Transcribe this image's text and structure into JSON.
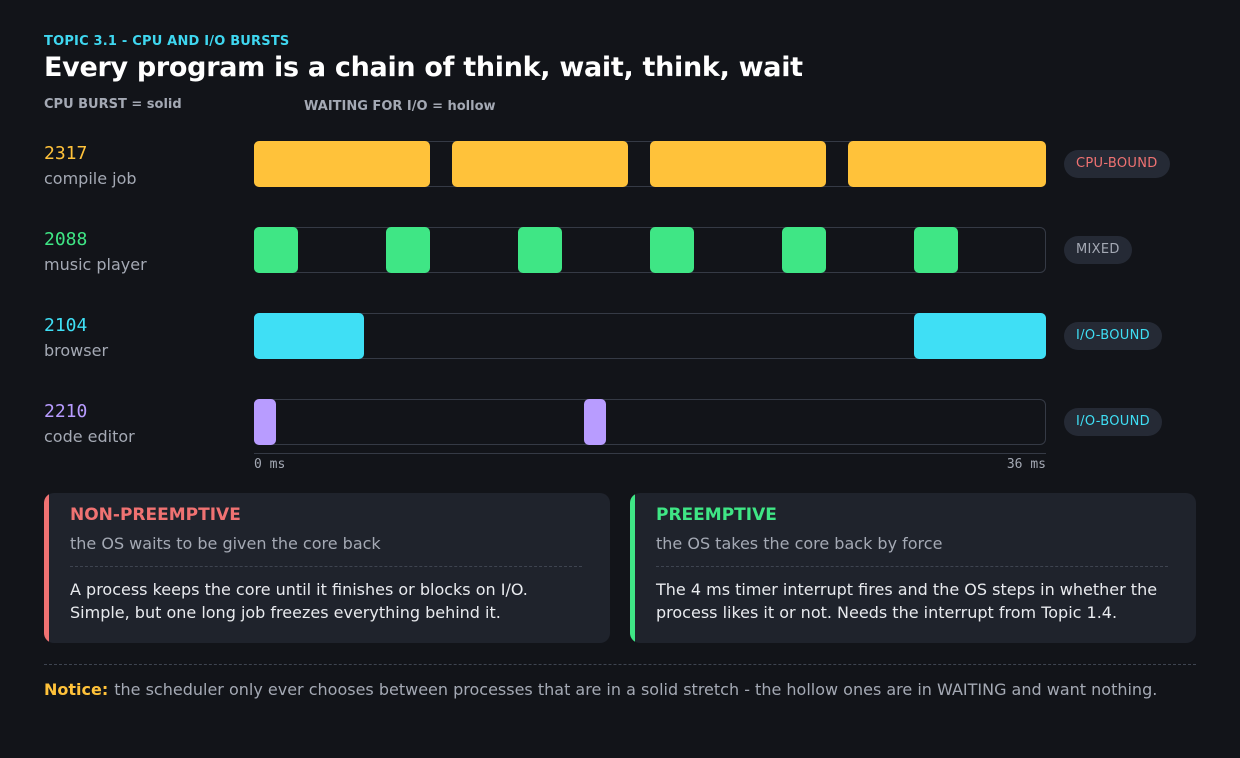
{
  "header": {
    "topic": "TOPIC 3.1  -  CPU AND I/O BURSTS",
    "title": "Every program is a chain of think, wait, think, wait",
    "legend_solid": "CPU BURST  =  solid",
    "legend_hollow": "WAITING FOR I/O  =  hollow"
  },
  "colors": {
    "cpu": "#ffc23a",
    "mixed": "#3fe685",
    "io": "#3fdff5",
    "editor": "#b89cff",
    "red": "#f07272"
  },
  "processes": [
    {
      "pid": "2317",
      "name": "compile job",
      "color": "#ffc23a",
      "badge": "CPU-BOUND",
      "badge_color": "#f07272",
      "bursts": [
        [
          0,
          8
        ],
        [
          9,
          17
        ],
        [
          18,
          26
        ],
        [
          27,
          36
        ]
      ]
    },
    {
      "pid": "2088",
      "name": "music player",
      "color": "#3fe685",
      "badge": "MIXED",
      "badge_color": "#a4a9b4",
      "bursts": [
        [
          0,
          2
        ],
        [
          6,
          8
        ],
        [
          12,
          14
        ],
        [
          18,
          20
        ],
        [
          24,
          26
        ],
        [
          30,
          32
        ]
      ]
    },
    {
      "pid": "2104",
      "name": "browser",
      "color": "#3fdff5",
      "badge": "I/O-BOUND",
      "badge_color": "#3fdff5",
      "bursts": [
        [
          0,
          5
        ],
        [
          30,
          36
        ]
      ]
    },
    {
      "pid": "2210",
      "name": "code editor",
      "color": "#b89cff",
      "badge": "I/O-BOUND",
      "badge_color": "#3fdff5",
      "bursts": [
        [
          0,
          1
        ],
        [
          15,
          16
        ]
      ]
    }
  ],
  "axis": {
    "min": 0,
    "max": 36,
    "start_label": "0 ms",
    "end_label": "36 ms"
  },
  "cards": {
    "non_preemptive": {
      "title": "NON-PREEMPTIVE",
      "subtitle": "the OS waits to be given the core back",
      "body": "A process keeps the core until it finishes or blocks on I/O. Simple, but one long job freezes everything behind it."
    },
    "preemptive": {
      "title": "PREEMPTIVE",
      "subtitle": "the OS takes the core back by force",
      "body": "The 4 ms timer interrupt fires and the OS steps in whether the process likes it or not. Needs the interrupt from Topic 1.4."
    }
  },
  "notice": {
    "label": "Notice:",
    "text": "the scheduler only ever chooses between processes that are in a solid stretch - the hollow ones are in WAITING and want nothing."
  }
}
